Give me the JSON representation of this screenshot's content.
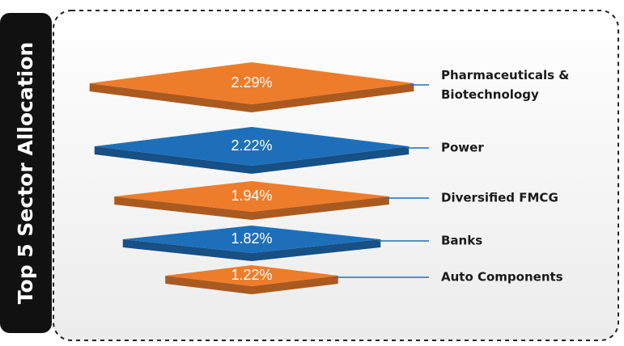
{
  "chart_data": {
    "type": "funnel",
    "title": "Top 5 Sector Allocation",
    "categories": [
      "Pharmaceuticals & Biotechnology",
      "Power",
      "Diversified FMCG",
      "Banks",
      "Auto Components"
    ],
    "values": [
      2.29,
      2.22,
      1.94,
      1.82,
      1.22
    ],
    "value_labels": [
      "2.29%",
      "2.22%",
      "1.94%",
      "1.82%",
      "1.22%"
    ],
    "colors": [
      "#ee7d2b",
      "#1e6fb9",
      "#ee7d2b",
      "#1e6fb9",
      "#ee7d2b"
    ]
  }
}
